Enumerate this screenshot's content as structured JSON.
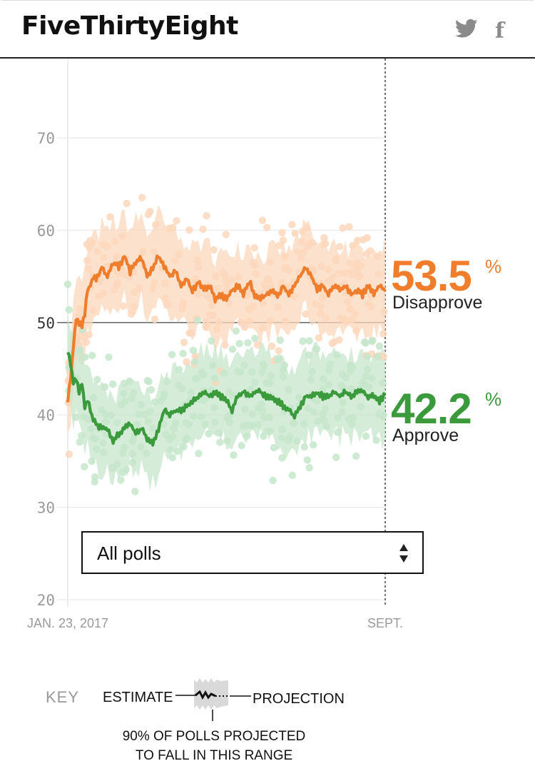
{
  "header": {
    "brand": "FiveThirtyEight",
    "share_icons": [
      "twitter-icon",
      "facebook-icon"
    ],
    "facebook_glyph": "f"
  },
  "colors": {
    "approve": "#3a9a3c",
    "disapprove": "#ef7d2b",
    "approve_light": "#c6e6cb",
    "disapprove_light": "#fbd7bc",
    "grid": "#e6e6e6",
    "axis_text": "#9a9a9a"
  },
  "chart_data": {
    "type": "line",
    "title": "",
    "ylim": [
      20,
      76
    ],
    "yticks": [
      20,
      30,
      40,
      50,
      60,
      70
    ],
    "reference_line": 50,
    "x_range_days": [
      0,
      224
    ],
    "xtick_labels": [
      {
        "day": 0,
        "label": "JAN. 23, 2017"
      },
      {
        "day": 224,
        "label": "SEPT."
      }
    ],
    "series": [
      {
        "name": "Disapprove",
        "final_label": "53.5",
        "unit": "%",
        "band_halfwidth": 4.5,
        "points": [
          [
            0,
            41.5
          ],
          [
            2,
            44
          ],
          [
            4,
            47.5
          ],
          [
            6,
            50.5
          ],
          [
            8,
            50
          ],
          [
            10,
            49.5
          ],
          [
            12,
            51
          ],
          [
            14,
            53.5
          ],
          [
            16,
            54
          ],
          [
            18,
            55
          ],
          [
            20,
            54.5
          ],
          [
            24,
            56
          ],
          [
            28,
            55
          ],
          [
            32,
            56.5
          ],
          [
            36,
            56
          ],
          [
            40,
            57.2
          ],
          [
            44,
            55.5
          ],
          [
            48,
            56.5
          ],
          [
            52,
            57
          ],
          [
            56,
            55
          ],
          [
            60,
            56
          ],
          [
            64,
            57.3
          ],
          [
            68,
            56
          ],
          [
            72,
            55
          ],
          [
            76,
            55.5
          ],
          [
            80,
            54
          ],
          [
            84,
            54.8
          ],
          [
            88,
            53.3
          ],
          [
            92,
            54.5
          ],
          [
            96,
            53.5
          ],
          [
            100,
            54
          ],
          [
            104,
            52.5
          ],
          [
            108,
            53
          ],
          [
            112,
            52.5
          ],
          [
            116,
            53.5
          ],
          [
            120,
            54
          ],
          [
            124,
            53
          ],
          [
            128,
            54.5
          ],
          [
            132,
            53
          ],
          [
            136,
            52.5
          ],
          [
            140,
            53
          ],
          [
            144,
            53.5
          ],
          [
            148,
            52.8
          ],
          [
            152,
            54
          ],
          [
            156,
            53
          ],
          [
            160,
            54
          ],
          [
            164,
            55
          ],
          [
            168,
            56
          ],
          [
            172,
            55
          ],
          [
            176,
            53.5
          ],
          [
            180,
            54
          ],
          [
            184,
            53
          ],
          [
            188,
            54
          ],
          [
            192,
            53.5
          ],
          [
            196,
            54
          ],
          [
            200,
            53
          ],
          [
            204,
            53.5
          ],
          [
            208,
            53
          ],
          [
            212,
            54
          ],
          [
            216,
            53.2
          ],
          [
            220,
            54
          ],
          [
            224,
            53.5
          ]
        ]
      },
      {
        "name": "Approve",
        "final_label": "42.2",
        "unit": "%",
        "band_halfwidth": 4.5,
        "points": [
          [
            0,
            47
          ],
          [
            2,
            45.5
          ],
          [
            4,
            43.5
          ],
          [
            6,
            44
          ],
          [
            8,
            42.5
          ],
          [
            10,
            43.5
          ],
          [
            12,
            41
          ],
          [
            14,
            41.5
          ],
          [
            16,
            40.5
          ],
          [
            18,
            39.5
          ],
          [
            20,
            39
          ],
          [
            24,
            38.5
          ],
          [
            28,
            38.5
          ],
          [
            32,
            37
          ],
          [
            36,
            38
          ],
          [
            40,
            38.5
          ],
          [
            44,
            39
          ],
          [
            48,
            38
          ],
          [
            52,
            38.5
          ],
          [
            56,
            37.5
          ],
          [
            60,
            37
          ],
          [
            64,
            38.5
          ],
          [
            68,
            40.5
          ],
          [
            72,
            40
          ],
          [
            76,
            40.5
          ],
          [
            80,
            40.5
          ],
          [
            84,
            41
          ],
          [
            88,
            41.5
          ],
          [
            92,
            42
          ],
          [
            96,
            42.5
          ],
          [
            100,
            42
          ],
          [
            104,
            42.5
          ],
          [
            108,
            42
          ],
          [
            112,
            41.5
          ],
          [
            116,
            40.5
          ],
          [
            120,
            42
          ],
          [
            124,
            42.5
          ],
          [
            128,
            42
          ],
          [
            132,
            42.5
          ],
          [
            136,
            42.5
          ],
          [
            140,
            42
          ],
          [
            144,
            42
          ],
          [
            148,
            41.5
          ],
          [
            152,
            41
          ],
          [
            156,
            40.5
          ],
          [
            160,
            39.8
          ],
          [
            164,
            41
          ],
          [
            168,
            42
          ],
          [
            172,
            42
          ],
          [
            176,
            42.5
          ],
          [
            180,
            42
          ],
          [
            184,
            42
          ],
          [
            188,
            42.5
          ],
          [
            192,
            42
          ],
          [
            196,
            42.5
          ],
          [
            200,
            42
          ],
          [
            204,
            42.5
          ],
          [
            208,
            42.5
          ],
          [
            212,
            42
          ],
          [
            216,
            42
          ],
          [
            220,
            41.5
          ],
          [
            224,
            42.2
          ]
        ]
      }
    ]
  },
  "series_labels": {
    "disapprove_value": "53.5",
    "disapprove_unit": "%",
    "disapprove_name": "Disapprove",
    "approve_value": "42.2",
    "approve_unit": "%",
    "approve_name": "Approve"
  },
  "filter": {
    "selected": "All polls"
  },
  "key": {
    "title": "KEY",
    "estimate": "ESTIMATE",
    "projection": "PROJECTION",
    "range_line1": "90% OF POLLS PROJECTED",
    "range_line2": "TO FALL IN THIS RANGE"
  }
}
